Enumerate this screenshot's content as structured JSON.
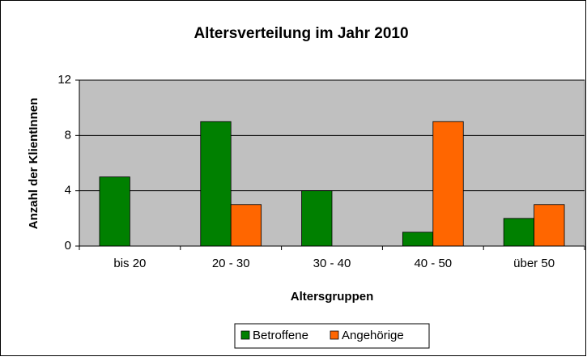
{
  "chart_data": {
    "type": "bar",
    "title": "Altersverteilung im Jahr 2010",
    "x_label": "Altersgruppen",
    "y_label": "Anzahl der KlientInnen",
    "categories": [
      "bis 20",
      "20 - 30",
      "30 - 40",
      "40 - 50",
      "über 50"
    ],
    "series": [
      {
        "name": "Betroffene",
        "color": "#008000",
        "values": [
          5,
          9,
          4,
          1,
          2
        ]
      },
      {
        "name": "Angehörige",
        "color": "#ff6600",
        "values": [
          0,
          3,
          0,
          9,
          3
        ]
      }
    ],
    "ylim": [
      0,
      12
    ],
    "yticks": [
      0,
      4,
      8,
      12
    ],
    "grid": true,
    "legend": "bottom"
  }
}
